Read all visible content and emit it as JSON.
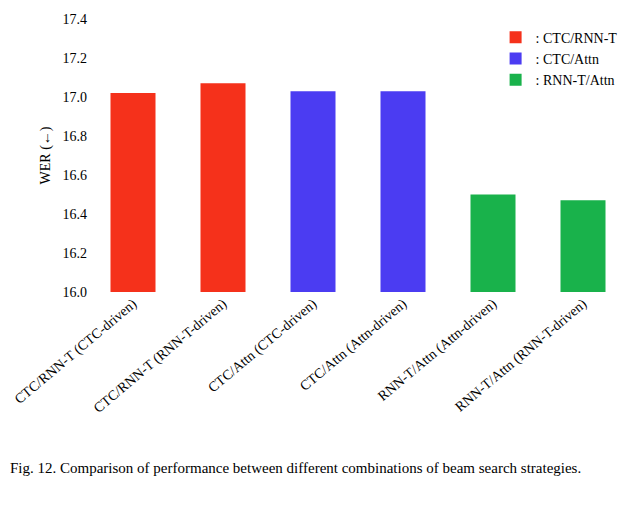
{
  "chart_data": {
    "type": "bar",
    "caption": "Fig. 12.  Comparison of performance between different combinations of beam search strategies.",
    "y_label": "WER (←)",
    "categories": [
      "CTC/RNN-T (CTC-driven)",
      "CTC/RNN-T (RNN-T-driven)",
      "CTC/Attn (CTC-driven)",
      "CTC/Attn (Attn-driven)",
      "RNN-T/Attn (Attn-driven)",
      "RNN-T/Attn (RNN-T-driven)"
    ],
    "series": [
      {
        "name": ": CTC/RNN-T",
        "color": "#f5311b",
        "values": [
          17.02,
          17.07,
          null,
          null,
          null,
          null
        ]
      },
      {
        "name": ": CTC/Attn",
        "color": "#4b3cf2",
        "values": [
          null,
          null,
          17.03,
          17.03,
          null,
          null
        ]
      },
      {
        "name": ": RNN-T/Attn",
        "color": "#19b24b",
        "values": [
          null,
          null,
          null,
          null,
          16.5,
          16.47
        ]
      }
    ],
    "ylim": [
      16.0,
      17.4
    ],
    "yticks": [
      {
        "value": 16.0,
        "label": "16.0"
      },
      {
        "value": 16.2,
        "label": "16.2"
      },
      {
        "value": 16.4,
        "label": "16.4"
      },
      {
        "value": 16.6,
        "label": "16.6"
      },
      {
        "value": 16.8,
        "label": "16.8"
      },
      {
        "value": 17.0,
        "label": "17.0"
      },
      {
        "value": 17.2,
        "label": "17.2"
      },
      {
        "value": 17.4,
        "label": "17.4"
      }
    ],
    "grid": false,
    "legend": "top-right"
  }
}
